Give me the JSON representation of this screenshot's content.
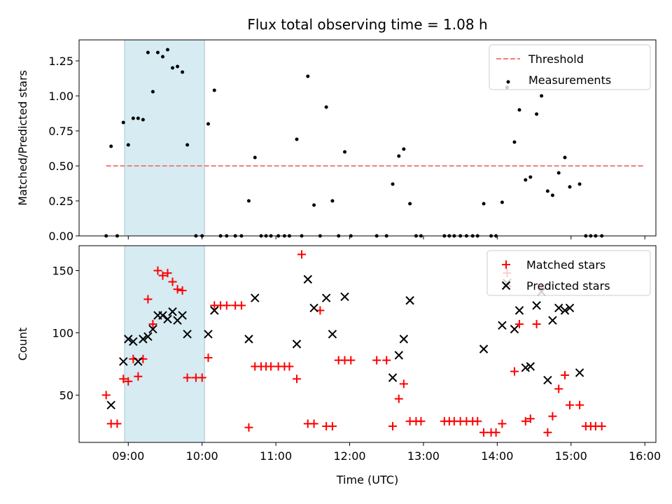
{
  "chart_data": [
    {
      "type": "scatter",
      "title": "Flux total observing time = 1.08 h",
      "xlabel": "",
      "ylabel": "Matched/Predicted stars",
      "xlim": [
        "08:20",
        "16:09"
      ],
      "ylim": [
        0,
        1.4
      ],
      "yticks": [
        "0.00",
        "0.25",
        "0.50",
        "0.75",
        "1.00",
        "1.25"
      ],
      "highlight_span": [
        "08:57",
        "10:02"
      ],
      "grid": false,
      "legend": {
        "placement": "top-right",
        "entries": [
          "Threshold",
          "Measurements"
        ]
      },
      "threshold": {
        "name": "Threshold",
        "value": 0.5,
        "x_range": [
          "08:42",
          "16:00"
        ],
        "color": "#f08080"
      },
      "series": [
        {
          "name": "Measurements",
          "color": "#000000",
          "points": [
            [
              "08:42",
              0.0
            ],
            [
              "08:46",
              0.64
            ],
            [
              "08:51",
              0.0
            ],
            [
              "08:56",
              0.81
            ],
            [
              "09:00",
              0.65
            ],
            [
              "09:04",
              0.84
            ],
            [
              "09:08",
              0.84
            ],
            [
              "09:12",
              0.83
            ],
            [
              "09:16",
              1.31
            ],
            [
              "09:20",
              1.03
            ],
            [
              "09:24",
              1.31
            ],
            [
              "09:28",
              1.28
            ],
            [
              "09:32",
              1.33
            ],
            [
              "09:36",
              1.2
            ],
            [
              "09:40",
              1.21
            ],
            [
              "09:44",
              1.17
            ],
            [
              "09:48",
              0.65
            ],
            [
              "09:55",
              0.0
            ],
            [
              "10:00",
              0.0
            ],
            [
              "10:05",
              0.8
            ],
            [
              "10:10",
              1.04
            ],
            [
              "10:15",
              0.0
            ],
            [
              "10:20",
              0.0
            ],
            [
              "10:27",
              0.0
            ],
            [
              "10:32",
              0.0
            ],
            [
              "10:38",
              0.25
            ],
            [
              "10:43",
              0.56
            ],
            [
              "10:48",
              0.0
            ],
            [
              "10:52",
              0.0
            ],
            [
              "10:56",
              0.0
            ],
            [
              "11:02",
              0.0
            ],
            [
              "11:07",
              0.0
            ],
            [
              "11:11",
              0.0
            ],
            [
              "11:17",
              0.69
            ],
            [
              "11:21",
              0.0
            ],
            [
              "11:26",
              1.14
            ],
            [
              "11:31",
              0.22
            ],
            [
              "11:36",
              0.0
            ],
            [
              "11:41",
              0.92
            ],
            [
              "11:46",
              0.25
            ],
            [
              "11:51",
              0.0
            ],
            [
              "11:56",
              0.6
            ],
            [
              "12:01",
              0.0
            ],
            [
              "12:22",
              0.0
            ],
            [
              "12:30",
              0.0
            ],
            [
              "12:35",
              0.37
            ],
            [
              "12:40",
              0.57
            ],
            [
              "12:44",
              0.62
            ],
            [
              "12:49",
              0.23
            ],
            [
              "12:54",
              0.0
            ],
            [
              "12:58",
              0.0
            ],
            [
              "13:17",
              0.0
            ],
            [
              "13:21",
              0.0
            ],
            [
              "13:25",
              0.0
            ],
            [
              "13:30",
              0.0
            ],
            [
              "13:35",
              0.0
            ],
            [
              "13:40",
              0.0
            ],
            [
              "13:44",
              0.0
            ],
            [
              "13:49",
              0.23
            ],
            [
              "13:55",
              0.0
            ],
            [
              "13:59",
              0.0
            ],
            [
              "14:04",
              0.24
            ],
            [
              "14:08",
              1.06
            ],
            [
              "14:14",
              0.67
            ],
            [
              "14:18",
              0.9
            ],
            [
              "14:23",
              0.4
            ],
            [
              "14:27",
              0.42
            ],
            [
              "14:32",
              0.87
            ],
            [
              "14:36",
              1.0
            ],
            [
              "14:41",
              0.32
            ],
            [
              "14:45",
              0.29
            ],
            [
              "14:50",
              0.45
            ],
            [
              "14:55",
              0.56
            ],
            [
              "14:59",
              0.35
            ],
            [
              "15:07",
              0.37
            ],
            [
              "15:12",
              0.0
            ],
            [
              "15:16",
              0.0
            ],
            [
              "15:20",
              0.0
            ],
            [
              "15:25",
              0.0
            ]
          ]
        }
      ]
    },
    {
      "type": "scatter",
      "title": "",
      "xlabel": "Time (UTC)",
      "ylabel": "Count",
      "xlim": [
        "08:20",
        "16:09"
      ],
      "ylim": [
        12,
        170
      ],
      "yticks": [
        "50",
        "100",
        "150"
      ],
      "xticks": [
        "09:00",
        "10:00",
        "11:00",
        "12:00",
        "13:00",
        "14:00",
        "15:00",
        "16:00"
      ],
      "highlight_span": [
        "08:57",
        "10:02"
      ],
      "grid": false,
      "legend": {
        "placement": "top-right",
        "entries": [
          "Matched stars",
          "Predicted stars"
        ]
      },
      "series": [
        {
          "name": "Matched stars",
          "marker": "plus",
          "color": "#ff0000",
          "points": [
            [
              "08:42",
              50
            ],
            [
              "08:46",
              27
            ],
            [
              "08:51",
              27
            ],
            [
              "08:56",
              63
            ],
            [
              "09:00",
              61
            ],
            [
              "09:04",
              79
            ],
            [
              "09:08",
              65
            ],
            [
              "09:12",
              79
            ],
            [
              "09:16",
              127
            ],
            [
              "09:20",
              107
            ],
            [
              "09:24",
              150
            ],
            [
              "09:28",
              146
            ],
            [
              "09:32",
              148
            ],
            [
              "09:36",
              141
            ],
            [
              "09:40",
              135
            ],
            [
              "09:44",
              134
            ],
            [
              "09:48",
              64
            ],
            [
              "09:55",
              64
            ],
            [
              "10:00",
              64
            ],
            [
              "10:05",
              80
            ],
            [
              "10:10",
              122
            ],
            [
              "10:15",
              122
            ],
            [
              "10:20",
              122
            ],
            [
              "10:27",
              122
            ],
            [
              "10:32",
              122
            ],
            [
              "10:38",
              24
            ],
            [
              "10:43",
              73
            ],
            [
              "10:48",
              73
            ],
            [
              "10:52",
              73
            ],
            [
              "10:56",
              73
            ],
            [
              "11:02",
              73
            ],
            [
              "11:07",
              73
            ],
            [
              "11:11",
              73
            ],
            [
              "11:17",
              63
            ],
            [
              "11:21",
              163
            ],
            [
              "11:26",
              27
            ],
            [
              "11:31",
              27
            ],
            [
              "11:36",
              118
            ],
            [
              "11:41",
              25
            ],
            [
              "11:46",
              25
            ],
            [
              "11:51",
              78
            ],
            [
              "11:56",
              78
            ],
            [
              "12:01",
              78
            ],
            [
              "12:22",
              78
            ],
            [
              "12:30",
              78
            ],
            [
              "12:35",
              25
            ],
            [
              "12:40",
              47
            ],
            [
              "12:44",
              59
            ],
            [
              "12:49",
              29
            ],
            [
              "12:54",
              29
            ],
            [
              "12:58",
              29
            ],
            [
              "13:17",
              29
            ],
            [
              "13:21",
              29
            ],
            [
              "13:25",
              29
            ],
            [
              "13:30",
              29
            ],
            [
              "13:35",
              29
            ],
            [
              "13:40",
              29
            ],
            [
              "13:44",
              29
            ],
            [
              "13:49",
              20
            ],
            [
              "13:55",
              20
            ],
            [
              "13:59",
              20
            ],
            [
              "14:04",
              27
            ],
            [
              "14:08",
              148
            ],
            [
              "14:14",
              69
            ],
            [
              "14:18",
              107
            ],
            [
              "14:23",
              29
            ],
            [
              "14:27",
              31
            ],
            [
              "14:32",
              107
            ],
            [
              "14:36",
              136
            ],
            [
              "14:41",
              20
            ],
            [
              "14:45",
              33
            ],
            [
              "14:50",
              55
            ],
            [
              "14:55",
              66
            ],
            [
              "14:59",
              42
            ],
            [
              "15:07",
              42
            ],
            [
              "15:12",
              25
            ],
            [
              "15:16",
              25
            ],
            [
              "15:20",
              25
            ],
            [
              "15:25",
              25
            ]
          ]
        },
        {
          "name": "Predicted stars",
          "marker": "x",
          "color": "#000000",
          "points": [
            [
              "08:46",
              42
            ],
            [
              "08:56",
              77
            ],
            [
              "09:00",
              95
            ],
            [
              "09:04",
              93
            ],
            [
              "09:08",
              77
            ],
            [
              "09:12",
              95
            ],
            [
              "09:16",
              97
            ],
            [
              "09:20",
              103
            ],
            [
              "09:24",
              114
            ],
            [
              "09:28",
              114
            ],
            [
              "09:32",
              111
            ],
            [
              "09:36",
              117
            ],
            [
              "09:40",
              110
            ],
            [
              "09:44",
              114
            ],
            [
              "09:48",
              99
            ],
            [
              "10:05",
              99
            ],
            [
              "10:10",
              118
            ],
            [
              "10:38",
              95
            ],
            [
              "10:43",
              128
            ],
            [
              "11:17",
              91
            ],
            [
              "11:26",
              143
            ],
            [
              "11:31",
              120
            ],
            [
              "11:41",
              128
            ],
            [
              "11:46",
              99
            ],
            [
              "11:56",
              129
            ],
            [
              "12:35",
              64
            ],
            [
              "12:40",
              82
            ],
            [
              "12:44",
              95
            ],
            [
              "12:49",
              126
            ],
            [
              "13:49",
              87
            ],
            [
              "14:04",
              106
            ],
            [
              "14:08",
              140
            ],
            [
              "14:14",
              103
            ],
            [
              "14:18",
              118
            ],
            [
              "14:23",
              72
            ],
            [
              "14:27",
              73
            ],
            [
              "14:32",
              122
            ],
            [
              "14:36",
              133
            ],
            [
              "14:41",
              62
            ],
            [
              "14:45",
              110
            ],
            [
              "14:50",
              120
            ],
            [
              "14:55",
              118
            ],
            [
              "14:59",
              120
            ],
            [
              "15:07",
              68
            ]
          ]
        }
      ]
    }
  ]
}
